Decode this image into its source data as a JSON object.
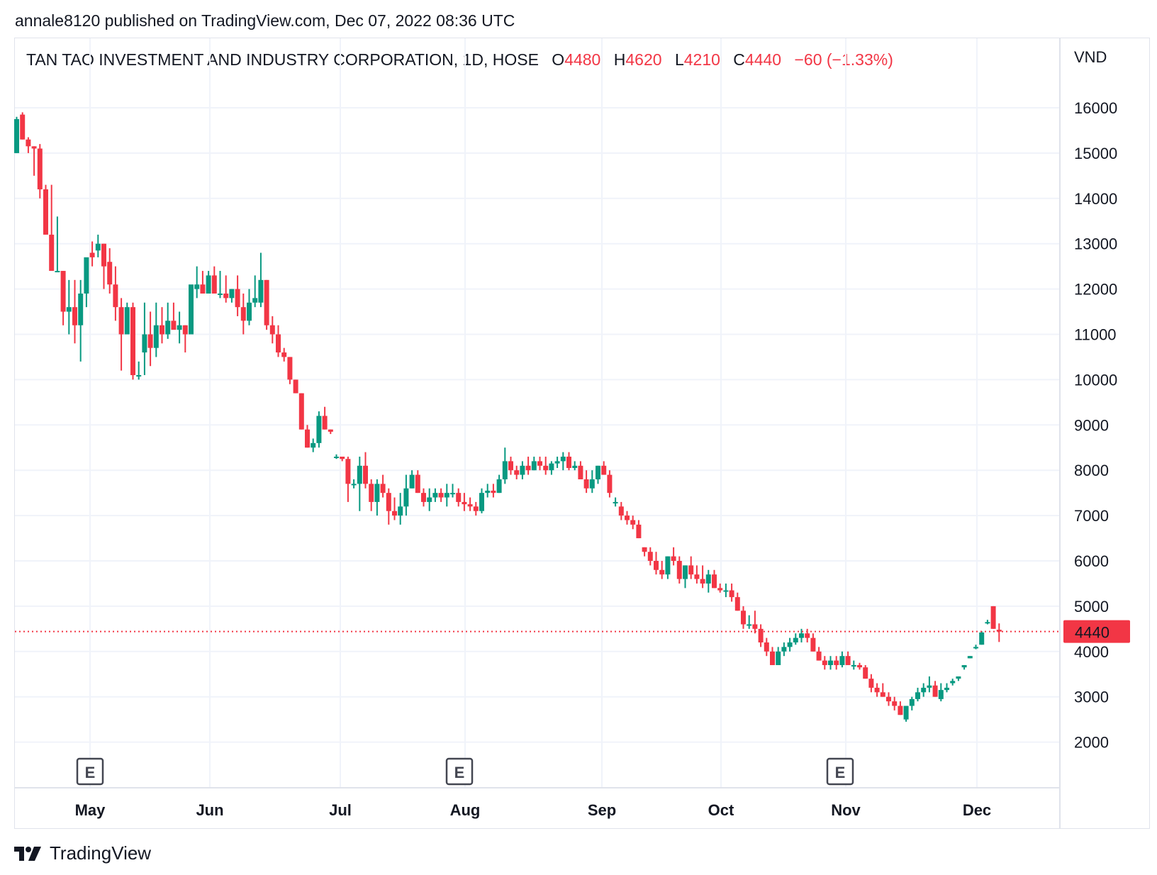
{
  "header": {
    "publisher": "annale8120 published on TradingView.com, Dec 07, 2022 08:36 UTC"
  },
  "legend": {
    "symbol": "TAN TAO INVESTMENT AND INDUSTRY CORPORATION, 1D, HOSE",
    "o_label": "O",
    "o": "4480",
    "h_label": "H",
    "h": "4620",
    "l_label": "L",
    "l": "4210",
    "c_label": "C",
    "c": "4440",
    "change": "−60 (−1.33%)"
  },
  "price_axis": {
    "currency": "VND",
    "ticks": [
      "16000",
      "15000",
      "14000",
      "13000",
      "12000",
      "11000",
      "10000",
      "9000",
      "8000",
      "7000",
      "6000",
      "5000",
      "4000",
      "3000",
      "2000"
    ],
    "last_price_label": "4440"
  },
  "time_axis": {
    "months": [
      "May",
      "Jun",
      "Jul",
      "Aug",
      "Sep",
      "Oct",
      "Nov",
      "Dec"
    ]
  },
  "events": [
    {
      "label": "E",
      "month": "May"
    },
    {
      "label": "E",
      "month": "Aug"
    },
    {
      "label": "E",
      "month": "Nov"
    }
  ],
  "footer": {
    "brand": "TradingView"
  },
  "colors": {
    "up": "#089981",
    "down": "#F23645",
    "grid": "#f0f3fa",
    "text": "#131722"
  },
  "chart_data": {
    "type": "candlestick",
    "title": "TAN TAO INVESTMENT AND INDUSTRY CORPORATION, 1D, HOSE",
    "xlabel": "",
    "ylabel": "VND",
    "ylim": [
      1500,
      17000
    ],
    "grid": true,
    "last_price": 4440,
    "x_tick_labels": [
      "May",
      "Jun",
      "Jul",
      "Aug",
      "Sep",
      "Oct",
      "Nov",
      "Dec"
    ],
    "y_tick_labels": [
      16000,
      15000,
      14000,
      13000,
      12000,
      11000,
      10000,
      9000,
      8000,
      7000,
      6000,
      5000,
      4000,
      3000,
      2000
    ],
    "ohlc": [
      [
        15000,
        15800,
        15000,
        15750
      ],
      [
        15850,
        15900,
        15300,
        15300
      ],
      [
        15300,
        15350,
        15000,
        15150
      ],
      [
        15150,
        15150,
        14500,
        15100
      ],
      [
        15100,
        15200,
        14000,
        14200
      ],
      [
        14200,
        14300,
        13200,
        13200
      ],
      [
        13200,
        14300,
        12400,
        12400
      ],
      [
        12400,
        13600,
        12400,
        12400
      ],
      [
        12400,
        12400,
        11200,
        11500
      ],
      [
        11500,
        12200,
        11000,
        11600
      ],
      [
        11600,
        12200,
        10800,
        11200
      ],
      [
        11200,
        12200,
        10400,
        11900
      ],
      [
        11900,
        12500,
        11600,
        12700
      ],
      [
        12800,
        13050,
        12500,
        12700
      ],
      [
        12850,
        13200,
        12700,
        13000
      ],
      [
        13000,
        13000,
        12000,
        12500
      ],
      [
        12600,
        12900,
        11900,
        12100
      ],
      [
        12100,
        12500,
        11300,
        11600
      ],
      [
        11600,
        11800,
        10200,
        11000
      ],
      [
        11000,
        11700,
        11000,
        11600
      ],
      [
        11600,
        11700,
        10000,
        10100
      ],
      [
        10100,
        10400,
        10000,
        10100
      ],
      [
        10600,
        11700,
        10100,
        11000
      ],
      [
        11000,
        11500,
        10300,
        10700
      ],
      [
        10700,
        11700,
        10500,
        11200
      ],
      [
        11200,
        11600,
        10800,
        11000
      ],
      [
        11000,
        11700,
        10900,
        11300
      ],
      [
        11300,
        11700,
        11300,
        11100
      ],
      [
        11100,
        11500,
        10800,
        11200
      ],
      [
        11200,
        11200,
        10600,
        11000
      ],
      [
        11000,
        12000,
        11000,
        12100
      ],
      [
        12000,
        12500,
        11800,
        12100
      ],
      [
        12100,
        12400,
        11900,
        11900
      ],
      [
        11900,
        12400,
        11900,
        12300
      ],
      [
        12300,
        12500,
        12000,
        11900
      ],
      [
        11900,
        12400,
        11800,
        11900
      ],
      [
        11900,
        12300,
        11700,
        11800
      ],
      [
        11800,
        12000,
        11700,
        12000
      ],
      [
        12000,
        12300,
        11400,
        11600
      ],
      [
        11600,
        11900,
        11000,
        11300
      ],
      [
        11300,
        12000,
        11200,
        11700
      ],
      [
        11700,
        12300,
        11600,
        11800
      ],
      [
        11700,
        12800,
        11600,
        12200
      ],
      [
        12200,
        12200,
        11100,
        11200
      ],
      [
        11200,
        11400,
        10800,
        11000
      ],
      [
        11000,
        11200,
        10500,
        10600
      ],
      [
        10600,
        10700,
        10400,
        10500
      ],
      [
        10500,
        10500,
        9900,
        10000
      ],
      [
        10000,
        10000,
        9700,
        9700
      ],
      [
        9700,
        9700,
        8900,
        8900
      ],
      [
        8900,
        9000,
        8500,
        8500
      ],
      [
        8500,
        8700,
        8400,
        8600
      ],
      [
        8600,
        9300,
        8500,
        9200
      ],
      [
        9200,
        9400,
        8900,
        8900
      ],
      [
        8900,
        8900,
        8800,
        8850
      ],
      [
        8300,
        8350,
        8250,
        8300
      ],
      [
        8300,
        8300,
        8200,
        8250
      ],
      [
        8250,
        8300,
        7300,
        7700
      ],
      [
        7700,
        7800,
        7600,
        7700
      ],
      [
        7700,
        8300,
        7100,
        8100
      ],
      [
        8100,
        8400,
        7600,
        7700
      ],
      [
        7700,
        7800,
        7100,
        7300
      ],
      [
        7300,
        7800,
        7000,
        7700
      ],
      [
        7700,
        7900,
        7400,
        7500
      ],
      [
        7500,
        7600,
        6800,
        7100
      ],
      [
        7100,
        7400,
        6900,
        7000
      ],
      [
        7000,
        7500,
        6800,
        7200
      ],
      [
        7200,
        7900,
        7000,
        7600
      ],
      [
        7600,
        8000,
        7600,
        7900
      ],
      [
        7900,
        8000,
        7500,
        7500
      ],
      [
        7500,
        7600,
        7200,
        7300
      ],
      [
        7300,
        7600,
        7100,
        7400
      ],
      [
        7400,
        7600,
        7300,
        7500
      ],
      [
        7500,
        7600,
        7300,
        7400
      ],
      [
        7400,
        7700,
        7200,
        7500
      ],
      [
        7500,
        7700,
        7400,
        7500
      ],
      [
        7500,
        7600,
        7200,
        7300
      ],
      [
        7300,
        7500,
        7100,
        7250
      ],
      [
        7250,
        7400,
        7100,
        7200
      ],
      [
        7200,
        7300,
        7000,
        7100
      ],
      [
        7100,
        7600,
        7050,
        7500
      ],
      [
        7500,
        7700,
        7400,
        7550
      ],
      [
        7550,
        7700,
        7400,
        7500
      ],
      [
        7500,
        7900,
        7500,
        7800
      ],
      [
        7800,
        8500,
        7700,
        8200
      ],
      [
        8200,
        8300,
        7900,
        8000
      ],
      [
        8000,
        8100,
        7800,
        7900
      ],
      [
        7900,
        8200,
        7800,
        8100
      ],
      [
        8100,
        8300,
        7900,
        8000
      ],
      [
        8000,
        8300,
        8000,
        8200
      ],
      [
        8200,
        8300,
        8000,
        8100
      ],
      [
        8100,
        8300,
        7900,
        8000
      ],
      [
        8000,
        8200,
        7900,
        8150
      ],
      [
        8150,
        8300,
        8050,
        8200
      ],
      [
        8200,
        8400,
        8000,
        8300
      ],
      [
        8300,
        8400,
        8000,
        8050
      ],
      [
        8050,
        8200,
        8000,
        8100
      ],
      [
        8100,
        8200,
        7900,
        7800
      ],
      [
        7800,
        8000,
        7500,
        7600
      ],
      [
        7600,
        8000,
        7500,
        7800
      ],
      [
        7800,
        8100,
        7700,
        8100
      ],
      [
        8100,
        8200,
        7900,
        7900
      ],
      [
        7900,
        8000,
        7400,
        7500
      ],
      [
        7300,
        7400,
        7200,
        7300
      ],
      [
        7200,
        7300,
        6900,
        7000
      ],
      [
        7000,
        7100,
        6800,
        6900
      ],
      [
        6900,
        7000,
        6700,
        6800
      ],
      [
        6800,
        6900,
        6500,
        6500
      ],
      [
        6300,
        6300,
        6100,
        6200
      ],
      [
        6200,
        6300,
        5900,
        6000
      ],
      [
        6000,
        6200,
        5700,
        5800
      ],
      [
        5800,
        6000,
        5600,
        5700
      ],
      [
        5700,
        6100,
        5600,
        6100
      ],
      [
        6100,
        6300,
        5900,
        6000
      ],
      [
        6000,
        6100,
        5500,
        5600
      ],
      [
        5600,
        5900,
        5400,
        5900
      ],
      [
        5900,
        6100,
        5600,
        5700
      ],
      [
        5700,
        5900,
        5500,
        5600
      ],
      [
        5600,
        5900,
        5400,
        5500
      ],
      [
        5500,
        5800,
        5300,
        5700
      ],
      [
        5700,
        5800,
        5400,
        5400
      ],
      [
        5400,
        5500,
        5300,
        5350
      ],
      [
        5350,
        5500,
        5200,
        5350
      ],
      [
        5350,
        5500,
        5100,
        5200
      ],
      [
        5200,
        5300,
        4900,
        4900
      ],
      [
        4900,
        5000,
        4500,
        4600
      ],
      [
        4600,
        4800,
        4500,
        4600
      ],
      [
        4600,
        4900,
        4400,
        4500
      ],
      [
        4500,
        4600,
        4100,
        4200
      ],
      [
        4200,
        4300,
        3900,
        4000
      ],
      [
        4000,
        4100,
        3700,
        3700
      ],
      [
        3700,
        4100,
        3700,
        4000
      ],
      [
        4000,
        4200,
        3900,
        4100
      ],
      [
        4100,
        4300,
        4000,
        4200
      ],
      [
        4200,
        4400,
        4150,
        4300
      ],
      [
        4300,
        4500,
        4200,
        4400
      ],
      [
        4400,
        4500,
        4200,
        4300
      ],
      [
        4300,
        4400,
        4000,
        4000
      ],
      [
        4000,
        4100,
        3800,
        3800
      ],
      [
        3800,
        3900,
        3600,
        3700
      ],
      [
        3700,
        3900,
        3600,
        3800
      ],
      [
        3800,
        3900,
        3600,
        3700
      ],
      [
        3700,
        4000,
        3650,
        3900
      ],
      [
        3900,
        4000,
        3700,
        3700
      ],
      [
        3700,
        3800,
        3600,
        3700
      ],
      [
        3700,
        3750,
        3600,
        3650
      ],
      [
        3650,
        3700,
        3400,
        3400
      ],
      [
        3400,
        3500,
        3100,
        3200
      ],
      [
        3200,
        3300,
        3000,
        3100
      ],
      [
        3100,
        3300,
        3000,
        3000
      ],
      [
        3000,
        3100,
        2800,
        2900
      ],
      [
        2900,
        3000,
        2700,
        2800
      ],
      [
        2800,
        2900,
        2600,
        2600
      ],
      [
        2500,
        2800,
        2450,
        2800
      ],
      [
        2800,
        3000,
        2700,
        2950
      ],
      [
        2950,
        3200,
        2900,
        3100
      ],
      [
        3100,
        3300,
        3000,
        3200
      ],
      [
        3200,
        3450,
        3100,
        3250
      ],
      [
        3250,
        3350,
        3000,
        3000
      ],
      [
        2950,
        3300,
        2900,
        3150
      ],
      [
        3150,
        3300,
        3100,
        3200
      ],
      [
        3300,
        3400,
        3250,
        3350
      ],
      [
        3400,
        3450,
        3350,
        3450
      ],
      [
        3650,
        3700,
        3600,
        3700
      ],
      [
        3850,
        3900,
        3850,
        3900
      ],
      [
        4100,
        4150,
        4050,
        4100
      ],
      [
        4150,
        4450,
        4150,
        4420
      ],
      [
        4650,
        4700,
        4600,
        4650
      ],
      [
        5000,
        5000,
        4500,
        4500
      ],
      [
        4480,
        4620,
        4210,
        4440
      ]
    ]
  }
}
